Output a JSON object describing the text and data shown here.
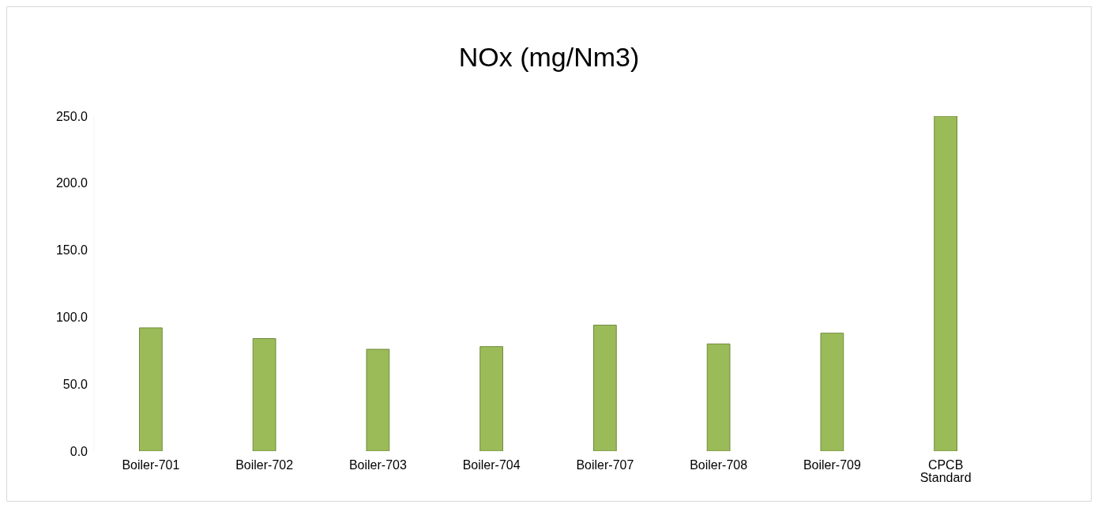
{
  "chart_data": {
    "type": "bar",
    "title": "NOx (mg/Nm3)",
    "categories": [
      "Boiler-701",
      "Boiler-702",
      "Boiler-703",
      "Boiler-704",
      "Boiler-707",
      "Boiler-708",
      "Boiler-709",
      "CPCB Standard"
    ],
    "values": [
      92,
      84,
      76,
      78,
      94,
      80,
      88,
      250
    ],
    "color": "#9bbb59",
    "ylim": [
      0,
      250
    ],
    "yticks": [
      {
        "value": 0,
        "label": "0.0"
      },
      {
        "value": 50,
        "label": "50.0"
      },
      {
        "value": 100,
        "label": "100.0"
      },
      {
        "value": 150,
        "label": "150.0"
      },
      {
        "value": 200,
        "label": "200.0"
      },
      {
        "value": 250,
        "label": "250.0"
      }
    ],
    "grid": false,
    "legend": false
  }
}
